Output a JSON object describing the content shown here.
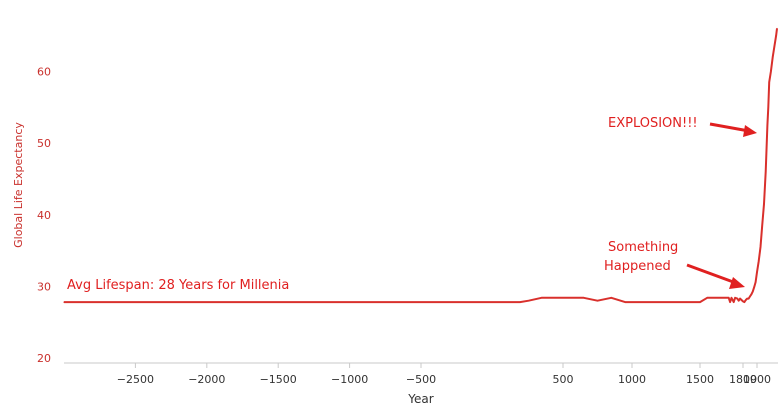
{
  "chart_data": {
    "type": "line",
    "title": "",
    "xlabel": "Year",
    "ylabel": "Global Life Expectancy",
    "xlim": [
      -3000,
      2020
    ],
    "ylim": [
      20,
      66
    ],
    "xticks": [
      -2500,
      -2000,
      -1500,
      -1000,
      -500,
      500,
      1000,
      1500,
      1800,
      1900
    ],
    "yticks": [
      20,
      30,
      40,
      50,
      60
    ],
    "grid": false,
    "legend": "none",
    "colors": {
      "line": "#d9302c",
      "axis_label": "#c9302c",
      "annotation": "#e02020",
      "tick_text": "#333333"
    },
    "series": [
      {
        "x": [
          -3000,
          0,
          100,
          250,
          500,
          650,
          750,
          850,
          950,
          1200,
          1400,
          1500,
          1550,
          1650,
          1700,
          1710,
          1720,
          1735,
          1745,
          1760,
          1770,
          1780,
          1800,
          1810,
          1820,
          1830,
          1840,
          1850,
          1860,
          1870,
          1880,
          1890,
          1900,
          1910,
          1920,
          1930,
          1940,
          1950,
          1960,
          1965,
          1970,
          1980,
          1990,
          2000,
          2010,
          2015
        ],
        "y": [
          27.8,
          27.8,
          28.0,
          28.4,
          28.4,
          28.4,
          28.0,
          28.4,
          27.8,
          27.8,
          27.8,
          27.8,
          28.4,
          28.4,
          28.4,
          27.8,
          28.4,
          27.8,
          28.4,
          28.3,
          28.0,
          28.3,
          27.9,
          27.8,
          28.1,
          28.3,
          28.3,
          28.6,
          28.9,
          29.3,
          29.9,
          30.6,
          32.0,
          33.5,
          35.5,
          38.5,
          41.5,
          46.0,
          52.5,
          55.0,
          58.5,
          60.0,
          62.0,
          63.5,
          65.0,
          66.0
        ]
      }
    ],
    "annotations": [
      {
        "text": "EXPLOSION!!!"
      },
      {
        "text": "Something"
      },
      {
        "text": "Happened"
      },
      {
        "text": "Avg Lifespan: 28 Years for Millenia"
      }
    ]
  }
}
